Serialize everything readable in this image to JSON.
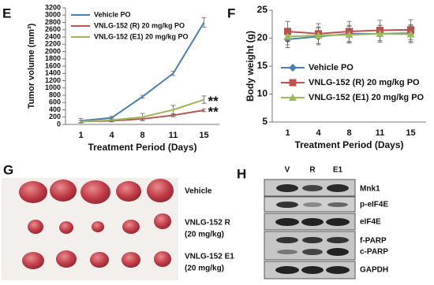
{
  "chart_data": [
    {
      "type": "line",
      "label": "E",
      "x_label": "Treatment Period (Days)",
      "y_label": "Tumor volume (mm³)",
      "categories": [
        "1",
        "4",
        "8",
        "11",
        "15"
      ],
      "ylim": [
        0,
        3200
      ],
      "yticks": [
        0,
        200,
        400,
        600,
        800,
        1000,
        1200,
        1400,
        1600,
        1800,
        2000,
        2200,
        2400,
        2600,
        2800,
        3000,
        3200
      ],
      "series": [
        {
          "name": "Vehicle PO",
          "color": "#4a7ebb",
          "values": [
            100,
            180,
            760,
            1400,
            2800
          ],
          "errors": [
            60,
            40,
            40,
            60,
            130
          ]
        },
        {
          "name": "VNLG-152 (R) 20 mg/kg PO",
          "color": "#c0504d",
          "values": [
            80,
            100,
            150,
            250,
            390
          ],
          "errors": [
            30,
            30,
            40,
            40,
            40
          ]
        },
        {
          "name": "VNLG-152 (E1) 20 mg/kg PO",
          "color": "#9bbb59",
          "values": [
            80,
            120,
            200,
            400,
            680
          ],
          "errors": [
            30,
            50,
            100,
            120,
            100
          ]
        }
      ],
      "annotations": [
        "**",
        "**"
      ]
    },
    {
      "type": "line",
      "label": "F",
      "x_label": "Treatment Period (Days)",
      "y_label": "Body weight (g)",
      "categories": [
        "1",
        "4",
        "8",
        "11",
        "15"
      ],
      "ylim": [
        5,
        25
      ],
      "yticks": [
        5,
        10,
        15,
        20,
        25
      ],
      "series": [
        {
          "name": "Vehicle PO",
          "color": "#4a7ebb",
          "marker": "diamond",
          "values": [
            19.8,
            20.3,
            20.8,
            20.8,
            20.9
          ],
          "errors": [
            1.5,
            1.5,
            1.5,
            1.5,
            1.5
          ]
        },
        {
          "name": "VNLG-152 (R) 20 mg/kg PO",
          "color": "#c0504d",
          "marker": "square",
          "values": [
            21.2,
            20.8,
            21.2,
            21.4,
            21.5
          ],
          "errors": [
            1.8,
            1.8,
            1.8,
            1.8,
            1.8
          ]
        },
        {
          "name": "VNLG-152 (E1) 20 mg/kg PO",
          "color": "#9bbb59",
          "marker": "triangle",
          "values": [
            20.3,
            20.5,
            20.6,
            20.8,
            20.7
          ],
          "errors": [
            1.5,
            1.5,
            1.5,
            1.5,
            1.5
          ]
        }
      ]
    }
  ],
  "panel_g": {
    "label": "G",
    "groups": [
      [
        "Vehicle"
      ],
      [
        "VNLG-152 R",
        "(20 mg/kg)"
      ],
      [
        "VNLG-152 E1",
        "(20 mg/kg)"
      ]
    ]
  },
  "panel_h": {
    "label": "H",
    "lanes": [
      "V",
      "R",
      "E1"
    ],
    "proteins": [
      "Mnk1",
      "p-eIF4E",
      "eIF4E",
      "f-PARP",
      "c-PARP",
      "GAPDH"
    ]
  }
}
